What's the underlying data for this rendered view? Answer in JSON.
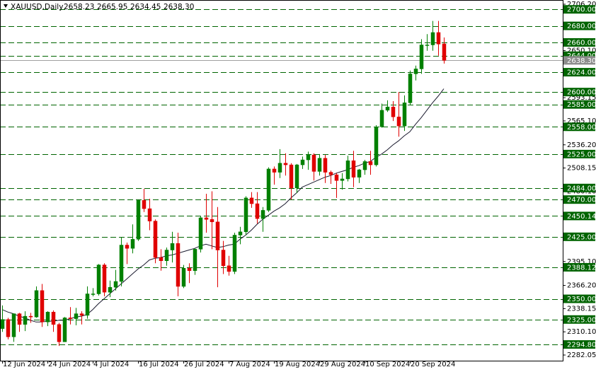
{
  "chart_data": {
    "type": "candlestick",
    "header": {
      "symbol": "XAUUSD,Daily",
      "ohlc_labels": [
        "2658.23",
        "2665.95",
        "2634.45",
        "2638.30"
      ]
    },
    "categories": [
      "12 Jun 2024",
      null,
      null,
      null,
      null,
      null,
      null,
      null,
      "24 Jun 2024",
      null,
      null,
      null,
      null,
      null,
      null,
      null,
      "4 Jul 2024",
      null,
      null,
      null,
      null,
      null,
      null,
      null,
      "16 Jul 2024",
      null,
      null,
      null,
      null,
      null,
      null,
      null,
      "26 Jul 2024",
      null,
      null,
      null,
      null,
      null,
      null,
      null,
      "7 Aug 2024",
      null,
      null,
      null,
      null,
      null,
      null,
      null,
      "19 Aug 2024",
      null,
      null,
      null,
      null,
      null,
      null,
      null,
      "29 Aug 2024",
      null,
      null,
      null,
      null,
      null,
      null,
      null,
      "10 Sep 2024",
      null,
      null,
      null,
      null,
      null,
      null,
      null,
      "20 Sep 2024",
      null,
      null,
      null,
      null,
      null,
      null
    ],
    "open": [
      2314,
      2325,
      2304,
      2332,
      2319,
      2329,
      2328,
      2360,
      2322,
      2334,
      2319,
      2298,
      2327,
      2326,
      2332,
      2330,
      2356,
      2356,
      2391,
      2358,
      2364,
      2371,
      2415,
      2411,
      2422,
      2469,
      2459,
      2444,
      2400,
      2396,
      2409,
      2417,
      2365,
      2387,
      2384,
      2410,
      2448,
      2446,
      2443,
      2409,
      2390,
      2383,
      2427,
      2431,
      2472,
      2465,
      2447,
      2457,
      2507,
      2503,
      2514,
      2512,
      2484,
      2512,
      2518,
      2524,
      2504,
      2520,
      2503,
      2500,
      2493,
      2495,
      2517,
      2497,
      2506,
      2516,
      2512,
      2558,
      2578,
      2582,
      2570,
      2559,
      2587,
      2622,
      2628,
      2657,
      2657,
      2672,
      2658.23
    ],
    "high": [
      2342,
      2327,
      2332,
      2333,
      2335,
      2333,
      2365,
      2368,
      2335,
      2336,
      2321,
      2328,
      2340,
      2339,
      2335,
      2365,
      2363,
      2392,
      2393,
      2372,
      2385,
      2424,
      2418,
      2440,
      2469,
      2483,
      2471,
      2446,
      2410,
      2412,
      2431,
      2430,
      2391,
      2393,
      2411,
      2450,
      2477,
      2480,
      2461,
      2420,
      2402,
      2430,
      2437,
      2474,
      2479,
      2479,
      2461,
      2509,
      2510,
      2531,
      2526,
      2514,
      2513,
      2522,
      2528,
      2526,
      2525,
      2524,
      2505,
      2502,
      2502,
      2523,
      2529,
      2507,
      2518,
      2529,
      2560,
      2586,
      2590,
      2589,
      2600,
      2596,
      2626,
      2632,
      2664,
      2670,
      2686,
      2686,
      2665.95
    ],
    "low": [
      2310,
      2301,
      2298,
      2310,
      2311,
      2321,
      2327,
      2316,
      2317,
      2310,
      2293,
      2298,
      2319,
      2318,
      2319,
      2326,
      2353,
      2354,
      2353,
      2352,
      2360,
      2365,
      2392,
      2405,
      2420,
      2455,
      2433,
      2393,
      2384,
      2390,
      2394,
      2353,
      2363,
      2369,
      2379,
      2406,
      2430,
      2410,
      2364,
      2380,
      2378,
      2380,
      2416,
      2427,
      2460,
      2441,
      2431,
      2455,
      2488,
      2496,
      2499,
      2470,
      2478,
      2507,
      2506,
      2493,
      2499,
      2490,
      2489,
      2472,
      2482,
      2492,
      2485,
      2490,
      2500,
      2500,
      2510,
      2557,
      2576,
      2565,
      2546,
      2553,
      2584,
      2614,
      2622,
      2650,
      2650,
      2644,
      2634.45
    ],
    "close": [
      2325,
      2304,
      2332,
      2319,
      2329,
      2328,
      2360,
      2322,
      2334,
      2319,
      2298,
      2327,
      2326,
      2332,
      2330,
      2356,
      2356,
      2391,
      2358,
      2364,
      2371,
      2415,
      2411,
      2422,
      2469,
      2459,
      2444,
      2400,
      2396,
      2409,
      2417,
      2365,
      2387,
      2384,
      2410,
      2448,
      2446,
      2443,
      2409,
      2390,
      2383,
      2427,
      2431,
      2472,
      2465,
      2447,
      2457,
      2507,
      2503,
      2514,
      2512,
      2484,
      2512,
      2518,
      2524,
      2504,
      2520,
      2503,
      2500,
      2493,
      2495,
      2517,
      2497,
      2506,
      2516,
      2512,
      2558,
      2578,
      2582,
      2570,
      2559,
      2587,
      2622,
      2628,
      2657,
      2657,
      2672,
      2658,
      2638.3
    ],
    "moving_average": {
      "color": "#1a1a2e",
      "values": [
        2337,
        2334,
        2332,
        2329,
        2327,
        2324,
        2322,
        2322,
        2323,
        2323,
        2324,
        2324,
        2326,
        2328,
        2329,
        2331,
        2337,
        2344,
        2350,
        2356,
        2362,
        2368,
        2374,
        2380,
        2386,
        2391,
        2397,
        2399,
        2400,
        2402,
        2403,
        2405,
        2407,
        2409,
        2411,
        2414,
        2416,
        2414,
        2412,
        2413,
        2415,
        2416,
        2422,
        2427,
        2433,
        2440,
        2446,
        2451,
        2456,
        2460,
        2465,
        2472,
        2478,
        2485,
        2488,
        2491,
        2494,
        2497,
        2499,
        2502,
        2504,
        2506,
        2509,
        2511,
        2514,
        2516,
        2521,
        2525,
        2530,
        2536,
        2541,
        2547,
        2552,
        2561,
        2569,
        2578,
        2587,
        2595,
        2604
      ]
    },
    "up_color": "#008000",
    "down_color": "#e00000",
    "level_color": "#006400",
    "ylim": [
      2275.2,
      2711.3
    ],
    "yticks": [
      {
        "value": 2706.2,
        "label": "2706.20"
      },
      {
        "value": 2650.1,
        "label": "2650.10"
      },
      {
        "value": 2593.15,
        "label": "2593.15"
      },
      {
        "value": 2565.1,
        "label": "2565.10"
      },
      {
        "value": 2536.2,
        "label": "2536.20"
      },
      {
        "value": 2508.15,
        "label": "2508.15"
      },
      {
        "value": 2480.1,
        "label": "2480.10"
      },
      {
        "value": 2395.1,
        "label": "2395.10"
      },
      {
        "value": 2366.2,
        "label": "2366.20"
      },
      {
        "value": 2338.15,
        "label": "2338.15"
      },
      {
        "value": 2310.1,
        "label": "2310.10"
      },
      {
        "value": 2282.05,
        "label": "2282.05"
      }
    ],
    "levels": [
      {
        "value": 2700,
        "label": "2700.00"
      },
      {
        "value": 2680,
        "label": "2680.00"
      },
      {
        "value": 2660,
        "label": "2660.00"
      },
      {
        "value": 2644,
        "label": "2644.00"
      },
      {
        "value": 2624,
        "label": "2624.00"
      },
      {
        "value": 2600,
        "label": "2600.00"
      },
      {
        "value": 2585,
        "label": "2585.00"
      },
      {
        "value": 2558,
        "label": "2558.00"
      },
      {
        "value": 2525,
        "label": "2525.00"
      },
      {
        "value": 2484,
        "label": "2484.00"
      },
      {
        "value": 2470,
        "label": "2470.00"
      },
      {
        "value": 2450.14,
        "label": "2450.14"
      },
      {
        "value": 2425,
        "label": "2425.00"
      },
      {
        "value": 2388.12,
        "label": "2388.12"
      },
      {
        "value": 2350,
        "label": "2350.00"
      },
      {
        "value": 2325,
        "label": "2325.00"
      },
      {
        "value": 2294.8,
        "label": "2294.80"
      }
    ],
    "last_price": {
      "value": 2638.3,
      "label": "2638.30"
    }
  }
}
